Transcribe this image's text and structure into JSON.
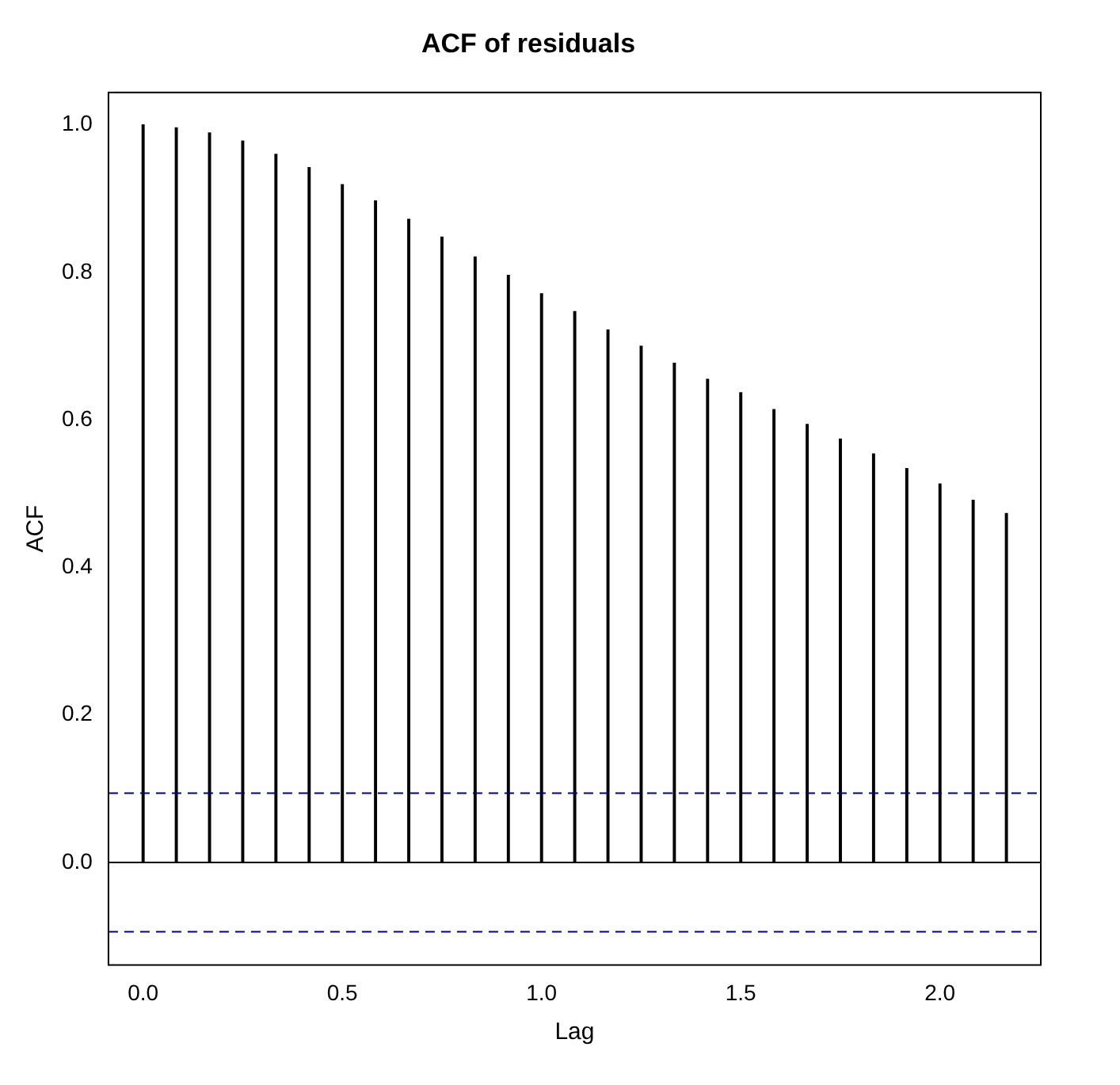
{
  "chart_data": {
    "type": "bar",
    "title": "ACF of residuals",
    "xlabel": "Lag",
    "ylabel": "ACF",
    "x": [
      0,
      0.0833,
      0.1667,
      0.25,
      0.3333,
      0.4167,
      0.5,
      0.5833,
      0.6667,
      0.75,
      0.8333,
      0.9167,
      1,
      1.0833,
      1.1667,
      1.25,
      1.3333,
      1.4167,
      1.5,
      1.5833,
      1.6667,
      1.75,
      1.8333,
      1.9167,
      2,
      2.0833,
      2.1667
    ],
    "values": [
      1.0,
      0.996,
      0.989,
      0.978,
      0.96,
      0.942,
      0.919,
      0.897,
      0.872,
      0.848,
      0.821,
      0.796,
      0.771,
      0.747,
      0.722,
      0.7,
      0.677,
      0.655,
      0.637,
      0.614,
      0.594,
      0.574,
      0.554,
      0.534,
      0.513,
      0.491,
      0.473
    ],
    "color": "#000000",
    "xlim": [
      -0.087,
      2.253
    ],
    "xticks": [
      {
        "value": 0,
        "label": "0.0"
      },
      0.5,
      {
        "value": 1,
        "label": "1.0"
      },
      1.5,
      {
        "value": 2,
        "label": "2.0"
      }
    ],
    "ylim": [
      -0.139,
      1.044
    ],
    "yticks": [
      {
        "value": 0,
        "label": "0.0"
      },
      0.2,
      0.4,
      0.6,
      0.8,
      {
        "value": 1,
        "label": "1.0"
      }
    ],
    "ref_lines": [
      {
        "axis": "y",
        "value": 0,
        "color": "#000000",
        "line_style": "solid"
      },
      {
        "axis": "y",
        "value": 0.094,
        "color": "#00008b",
        "line_style": "dashed"
      },
      {
        "axis": "y",
        "value": -0.094,
        "color": "#00008b",
        "line_style": "dashed"
      }
    ],
    "grid": false,
    "legend": false
  }
}
